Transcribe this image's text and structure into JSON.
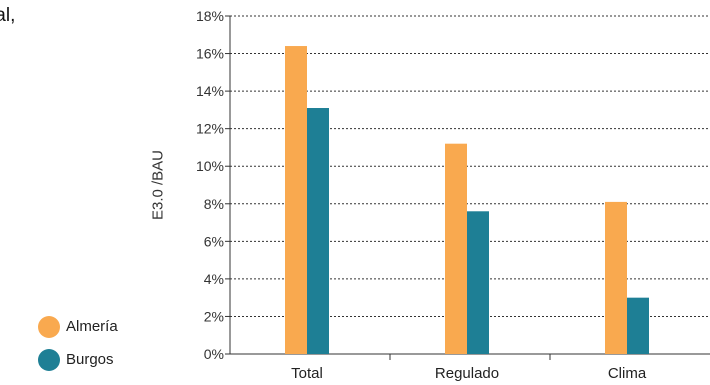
{
  "title_fragment": [
    "tal,",
    ")"
  ],
  "colors": {
    "almeria": "#F9A94F",
    "burgos": "#1E7F95",
    "grid": "#333333"
  },
  "chart_data": {
    "type": "bar",
    "categories": [
      "Total",
      "Regulado",
      "Clima"
    ],
    "series": [
      {
        "name": "Almería",
        "values": [
          16.4,
          11.2,
          8.1
        ]
      },
      {
        "name": "Burgos",
        "values": [
          13.1,
          7.6,
          3.0
        ]
      }
    ],
    "ylabel": "E3.0 /BAU",
    "ylim": [
      0,
      18
    ],
    "yticks": [
      "0%",
      "2%",
      "4%",
      "6%",
      "8%",
      "10%",
      "12%",
      "14%",
      "16%",
      "18%"
    ],
    "grid": true,
    "legend": "bottom-left"
  }
}
